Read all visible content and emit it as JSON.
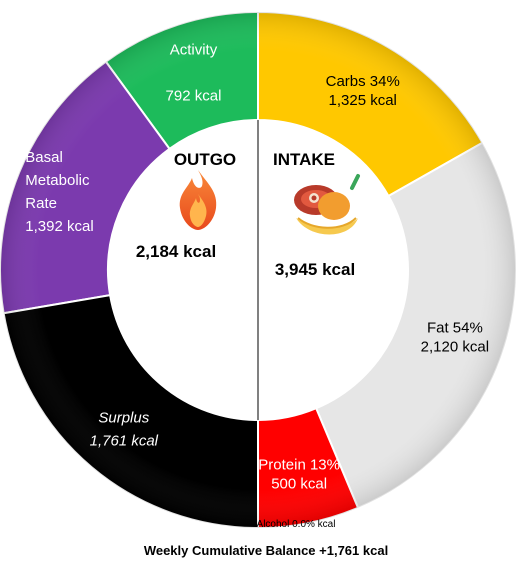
{
  "chart_data": {
    "type": "donut",
    "outgo": {
      "title": "OUTGO",
      "total_label": "2,184 kcal",
      "segments": [
        {
          "name": "Activity",
          "value": 792,
          "label_lines": [
            "Activity",
            "",
            "792 kcal"
          ],
          "color": "#1dbb5b",
          "text_color": "#ffffff"
        },
        {
          "name": "Basal Metabolic Rate",
          "value": 1392,
          "label_lines": [
            "Basal",
            "Metabolic",
            "Rate",
            "1,392 kcal"
          ],
          "color": "#7b3aae",
          "text_color": "#ffffff"
        },
        {
          "name": "Surplus",
          "value": 1761,
          "label_lines": [
            "Surplus",
            "1,761 kcal"
          ],
          "color": "#000000",
          "text_color": "#ffffff",
          "italic": true
        }
      ]
    },
    "intake": {
      "title": "INTAKE",
      "total_label": "3,945 kcal",
      "segments": [
        {
          "name": "Carbs",
          "value": 1325,
          "percent": 34,
          "label_lines": [
            "Carbs 34%",
            "1,325 kcal"
          ],
          "color": "#ffc800",
          "text_color": "#000000"
        },
        {
          "name": "Fat",
          "value": 2120,
          "percent": 54,
          "label_lines": [
            "Fat 54%",
            "2,120 kcal"
          ],
          "color": "#e6e6e6",
          "text_color": "#000000"
        },
        {
          "name": "Protein",
          "value": 500,
          "percent": 13,
          "label_lines": [
            "Protein 13%",
            "500 kcal"
          ],
          "color": "#ff0000",
          "text_color": "#ffffff"
        },
        {
          "name": "Alcohol",
          "value": 0,
          "percent": 0.0,
          "label_lines": [
            "Alcohol 0.0%  kcal"
          ],
          "color": "#7f7f7f",
          "text_color": "#000000"
        }
      ]
    },
    "caption": "Weekly Cumulative Balance +1,761 kcal"
  },
  "icons": {
    "outgo": "fire-icon",
    "intake": "food-icon"
  }
}
